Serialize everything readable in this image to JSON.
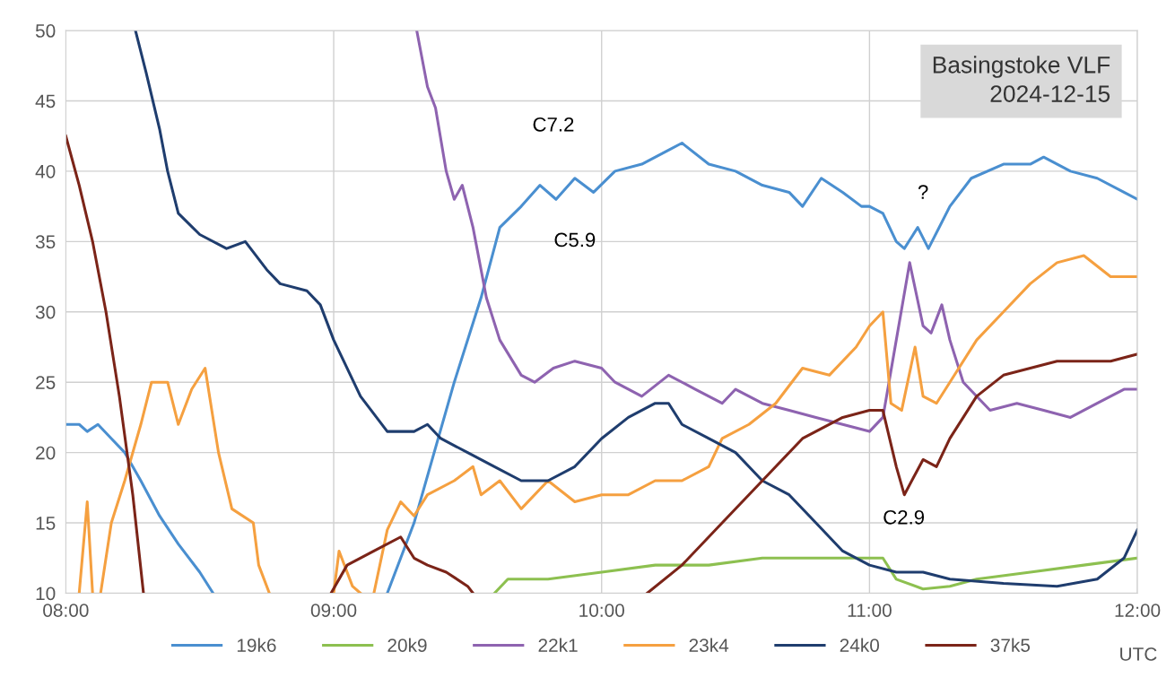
{
  "chart_data": {
    "type": "line",
    "title": "Basingstoke VLF\n2024-12-15",
    "xlabel": "UTC",
    "xlim": [
      8,
      12
    ],
    "ylim": [
      10,
      50
    ],
    "xticks": [
      {
        "value": 8,
        "label": "08:00"
      },
      {
        "value": 9,
        "label": "09:00"
      },
      {
        "value": 10,
        "label": "10:00"
      },
      {
        "value": 11,
        "label": "11:00"
      },
      {
        "value": 12,
        "label": "12:00"
      }
    ],
    "yticks": [
      10,
      15,
      20,
      25,
      30,
      35,
      40,
      45,
      50
    ],
    "grid": true,
    "legend": "bottom",
    "marker": "none",
    "line_style": "solid",
    "annotations": [
      "C7.2",
      "C5.9",
      "C2.9",
      "?"
    ],
    "series": [
      {
        "name": "19k6",
        "color": "#4a8fd0",
        "x": [
          8.0,
          8.05,
          8.08,
          8.12,
          8.17,
          8.22,
          8.28,
          8.35,
          8.42,
          8.5,
          8.55,
          8.9,
          9.2,
          9.3,
          9.45,
          9.55,
          9.62,
          9.7,
          9.77,
          9.83,
          9.9,
          9.97,
          10.05,
          10.15,
          10.25,
          10.3,
          10.4,
          10.5,
          10.6,
          10.7,
          10.75,
          10.82,
          10.9,
          10.97,
          11.0,
          11.05,
          11.1,
          11.13,
          11.18,
          11.22,
          11.3,
          11.38,
          11.5,
          11.6,
          11.65,
          11.75,
          11.85,
          11.95,
          12.0
        ],
        "values": [
          22,
          22,
          21.5,
          22,
          21,
          20,
          18,
          15.5,
          13.5,
          11.5,
          10,
          null,
          10,
          15,
          25,
          31,
          36,
          37.5,
          39,
          38,
          39.5,
          38.5,
          40,
          40.5,
          41.5,
          42,
          40.5,
          40,
          39,
          38.5,
          37.5,
          39.5,
          38.5,
          37.5,
          37.5,
          37,
          35,
          34.5,
          36,
          34.5,
          37.5,
          39.5,
          40.5,
          40.5,
          41,
          40,
          39.5,
          38.5,
          38
        ]
      },
      {
        "name": "20k9",
        "color": "#8dc050",
        "x": [
          9.6,
          9.65,
          9.8,
          10.0,
          10.2,
          10.4,
          10.6,
          10.8,
          11.0,
          11.05,
          11.1,
          11.2,
          11.3,
          11.4,
          11.6,
          11.8,
          12.0
        ],
        "values": [
          10,
          11,
          11,
          11.5,
          12,
          12,
          12.5,
          12.5,
          12.5,
          12.5,
          11,
          10.3,
          10.5,
          11,
          11.5,
          12,
          12.5
        ]
      },
      {
        "name": "22k1",
        "color": "#8e63b0",
        "x": [
          9.31,
          9.35,
          9.38,
          9.42,
          9.45,
          9.48,
          9.52,
          9.57,
          9.62,
          9.7,
          9.75,
          9.82,
          9.9,
          10.0,
          10.05,
          10.15,
          10.25,
          10.35,
          10.45,
          10.5,
          10.6,
          10.7,
          10.8,
          10.9,
          11.0,
          11.05,
          11.1,
          11.15,
          11.2,
          11.23,
          11.27,
          11.3,
          11.35,
          11.45,
          11.55,
          11.65,
          11.75,
          11.85,
          11.95,
          12.0
        ],
        "values": [
          50,
          46,
          44.5,
          40,
          38,
          39,
          36,
          31,
          28,
          25.5,
          25,
          26,
          26.5,
          26,
          25,
          24,
          25.5,
          24.5,
          23.5,
          24.5,
          23.5,
          23,
          22.5,
          22,
          21.5,
          22.5,
          28,
          33.5,
          29,
          28.5,
          30.5,
          28,
          25,
          23,
          23.5,
          23,
          22.5,
          23.5,
          24.5,
          24.5
        ]
      },
      {
        "name": "23k4",
        "color": "#f5a040",
        "x": [
          8.05,
          8.08,
          8.1,
          8.12,
          8.13,
          8.17,
          8.22,
          8.28,
          8.32,
          8.38,
          8.42,
          8.47,
          8.52,
          8.57,
          8.62,
          8.7,
          8.72,
          8.76,
          8.9,
          9.0,
          9.02,
          9.07,
          9.1,
          9.12,
          9.15,
          9.2,
          9.25,
          9.3,
          9.35,
          9.45,
          9.52,
          9.55,
          9.62,
          9.7,
          9.8,
          9.9,
          10.0,
          10.1,
          10.2,
          10.3,
          10.4,
          10.45,
          10.55,
          10.65,
          10.75,
          10.85,
          10.95,
          11.0,
          11.05,
          11.08,
          11.12,
          11.17,
          11.2,
          11.25,
          11.3,
          11.4,
          11.5,
          11.6,
          11.7,
          11.8,
          11.9,
          12.0
        ],
        "values": [
          10,
          16.5,
          10,
          null,
          10,
          15,
          18,
          22,
          25,
          25,
          22,
          24.5,
          26,
          20,
          16,
          15,
          12,
          10,
          null,
          10,
          13,
          10.5,
          10,
          null,
          10,
          14.5,
          16.5,
          15.5,
          17,
          18,
          19,
          17,
          18,
          16,
          18,
          16.5,
          17,
          17,
          18,
          18,
          19,
          21,
          22,
          23.5,
          26,
          25.5,
          27.5,
          29,
          30,
          23.5,
          23,
          27.5,
          24,
          23.5,
          25,
          28,
          30,
          32,
          33.5,
          34,
          32.5,
          32.5
        ]
      },
      {
        "name": "24k0",
        "color": "#1f3d6e",
        "x": [
          8.26,
          8.3,
          8.35,
          8.38,
          8.42,
          8.5,
          8.6,
          8.67,
          8.75,
          8.8,
          8.9,
          8.95,
          9.0,
          9.1,
          9.2,
          9.3,
          9.35,
          9.4,
          9.5,
          9.6,
          9.7,
          9.8,
          9.9,
          10.0,
          10.1,
          10.2,
          10.25,
          10.3,
          10.4,
          10.5,
          10.6,
          10.7,
          10.8,
          10.9,
          11.0,
          11.1,
          11.2,
          11.3,
          11.5,
          11.7,
          11.85,
          11.95,
          12.0
        ],
        "values": [
          50,
          47,
          43,
          40,
          37,
          35.5,
          34.5,
          35,
          33,
          32,
          31.5,
          30.5,
          28,
          24,
          21.5,
          21.5,
          22,
          21,
          20,
          19,
          18,
          18,
          19,
          21,
          22.5,
          23.5,
          23.5,
          22,
          21,
          20,
          18,
          17,
          15,
          13,
          12,
          11.5,
          11.5,
          11,
          10.7,
          10.5,
          11,
          12.5,
          14.5
        ]
      },
      {
        "name": "37k5",
        "color": "#7b2418",
        "x": [
          8.0,
          8.05,
          8.1,
          8.15,
          8.2,
          8.25,
          8.29,
          8.6,
          8.99,
          9.05,
          9.15,
          9.25,
          9.3,
          9.35,
          9.42,
          9.5,
          9.52,
          9.8,
          10.17,
          10.3,
          10.45,
          10.6,
          10.75,
          10.9,
          11.0,
          11.05,
          11.1,
          11.13,
          11.2,
          11.25,
          11.3,
          11.4,
          11.5,
          11.7,
          11.9,
          12.0
        ],
        "values": [
          42.5,
          39,
          35,
          30,
          24,
          17,
          10,
          null,
          10,
          12,
          13,
          14,
          12.5,
          12,
          11.5,
          10.5,
          10,
          null,
          10,
          12,
          15,
          18,
          21,
          22.5,
          23,
          23,
          19,
          17,
          19.5,
          19,
          21,
          24,
          25.5,
          26.5,
          26.5,
          27
        ]
      }
    ]
  }
}
